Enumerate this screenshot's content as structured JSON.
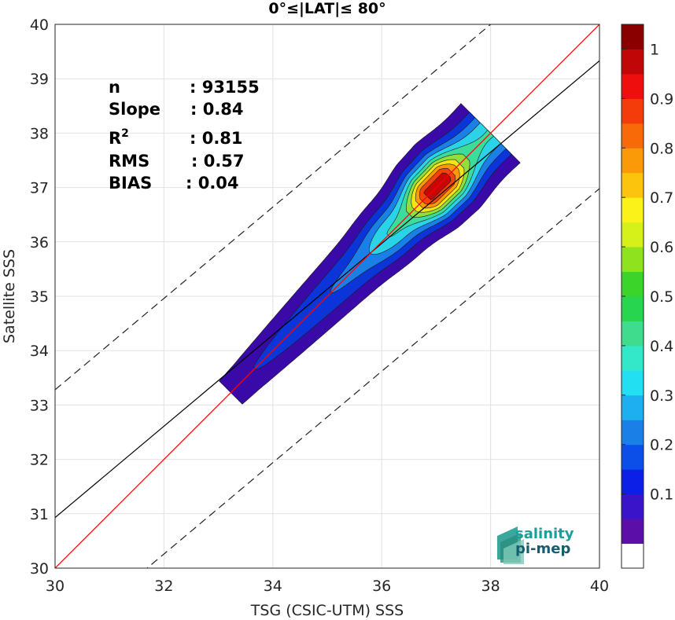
{
  "chart_data": {
    "type": "heatmap",
    "title": "0°≤|LAT|≤ 80°",
    "xlabel": "TSG (CSIC-UTM) SSS",
    "ylabel": "Satellite SSS",
    "xlim": [
      30,
      40
    ],
    "ylim": [
      30,
      40
    ],
    "xticks": [
      "30",
      "32",
      "34",
      "36",
      "38",
      "40"
    ],
    "yticks": [
      "30",
      "31",
      "32",
      "33",
      "34",
      "35",
      "36",
      "37",
      "38",
      "39",
      "40"
    ],
    "grid": true,
    "stats": [
      {
        "key": "n",
        "value": ": 93155"
      },
      {
        "key": "Slope",
        "value": ": 0.84"
      },
      {
        "key": "R",
        "sup": "2",
        "value": ": 0.81"
      },
      {
        "key": "RMS",
        "value": ": 0.57"
      },
      {
        "key": "BIAS",
        "value": ": 0.04"
      }
    ],
    "lines": {
      "identity": {
        "color": "#ff0000",
        "slope": 1,
        "intercept": 0
      },
      "regression": {
        "color": "#000000",
        "slope": 0.84,
        "intercept": 5.73
      },
      "envelope_offset": 2.35
    },
    "density_levels": [
      {
        "level": 0.05,
        "color": "#3a0aa8"
      },
      {
        "level": 0.15,
        "color": "#0b35d8"
      },
      {
        "level": 0.25,
        "color": "#1a7fe6"
      },
      {
        "level": 0.35,
        "color": "#2ad3e8"
      },
      {
        "level": 0.45,
        "color": "#3cdc9a"
      },
      {
        "level": 0.55,
        "color": "#8fe03a"
      },
      {
        "level": 0.65,
        "color": "#f4e414"
      },
      {
        "level": 0.75,
        "color": "#fb9a08"
      },
      {
        "level": 0.85,
        "color": "#f4420a"
      },
      {
        "level": 0.95,
        "color": "#c80606"
      }
    ],
    "colorbar": {
      "ticks": [
        "0.1",
        "0.2",
        "0.3",
        "0.4",
        "0.5",
        "0.6",
        "0.7",
        "0.8",
        "0.9",
        "1"
      ],
      "colors": [
        "#ffffff",
        "#5b0fa8",
        "#3a14c8",
        "#0b1fe6",
        "#0b4ee8",
        "#1a7fe6",
        "#1eaff0",
        "#22e0f2",
        "#33e8c8",
        "#3fdc8e",
        "#27d64e",
        "#3ad42a",
        "#8ee21e",
        "#d6f01a",
        "#fbf21a",
        "#fcc40c",
        "#fb9a08",
        "#f86a08",
        "#f43c0a",
        "#ee0e0e",
        "#c00606",
        "#8a0000"
      ]
    },
    "logo": {
      "line1": "salinity",
      "line2": "pi-mep"
    }
  }
}
